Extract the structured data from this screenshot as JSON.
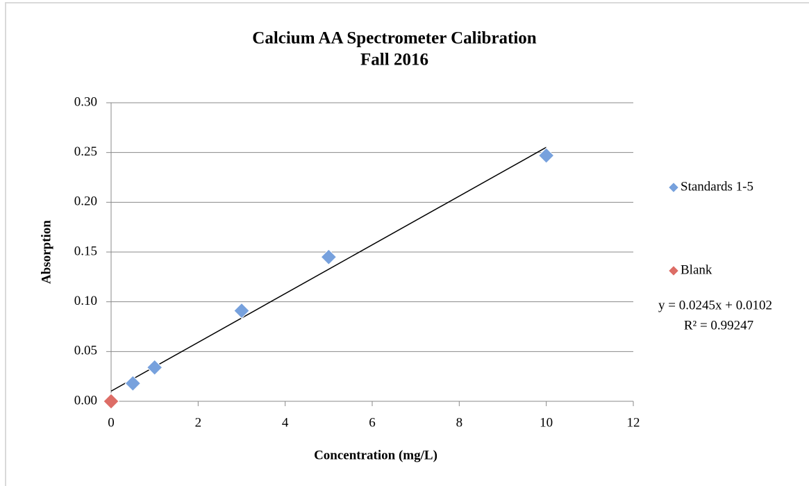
{
  "chart_data": {
    "type": "scatter",
    "title": "Calcium AA Spectrometer Calibration",
    "subtitle": "Fall 2016",
    "x_label": "Concentration (mg/L)",
    "y_label": "Absorption",
    "xlim": [
      0,
      12
    ],
    "xticks": [
      0,
      2,
      4,
      6,
      8,
      10,
      12
    ],
    "ylim": [
      0,
      0.3
    ],
    "yticks": [
      {
        "value": 0,
        "label": "0.00"
      },
      {
        "value": 0.05,
        "label": "0.05"
      },
      {
        "value": 0.1,
        "label": "0.10"
      },
      {
        "value": 0.15,
        "label": "0.15"
      },
      {
        "value": 0.2,
        "label": "0.20"
      },
      {
        "value": 0.25,
        "label": "0.25"
      },
      {
        "value": 0.3,
        "label": "0.30"
      }
    ],
    "grid": true,
    "legend": "right",
    "series": [
      {
        "name": "Standards 1-5",
        "color": "#77a1dd",
        "x": [
          0.5,
          1,
          3,
          5,
          10
        ],
        "values": [
          0.018,
          0.034,
          0.091,
          0.145,
          0.247
        ]
      },
      {
        "name": "Blank",
        "color": "#dd6d66",
        "x": [
          0
        ],
        "values": [
          0
        ]
      }
    ],
    "trendline": {
      "label": "y = 0.0245x + 0.0102",
      "r2_label": "R² = 0.99247",
      "slope": 0.0245,
      "intercept": 0.0102,
      "x_range": [
        0,
        10
      ]
    }
  }
}
